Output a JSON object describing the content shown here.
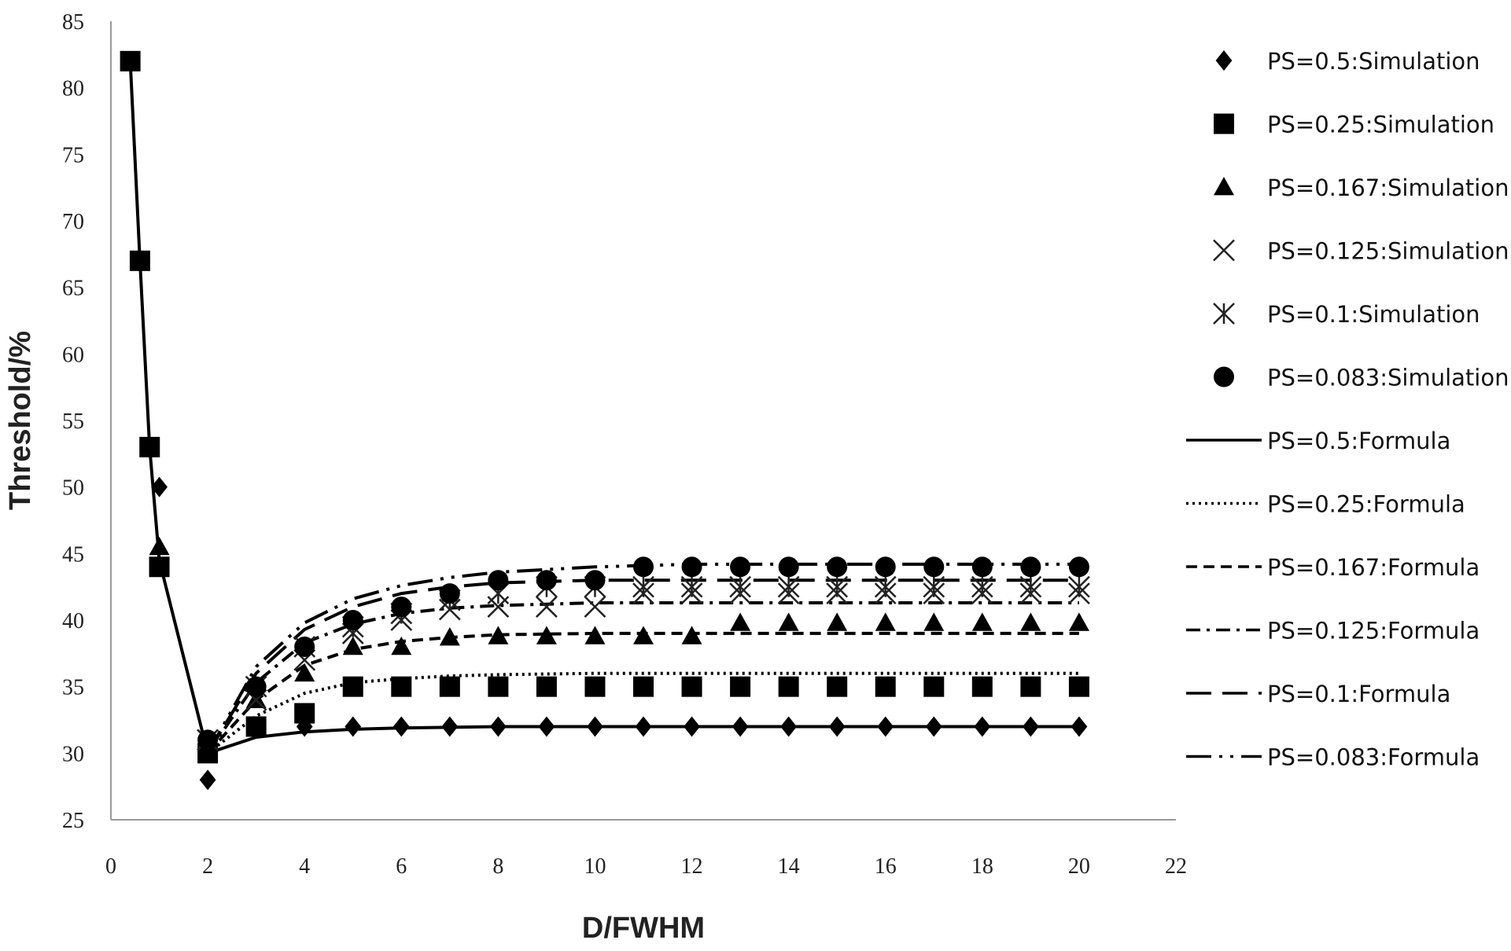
{
  "chart_data": {
    "type": "line",
    "title": "",
    "xlabel": "D/FWHM",
    "ylabel": "Threshold/%",
    "xlim": [
      0,
      22
    ],
    "ylim": [
      25,
      85
    ],
    "xticks": [
      "0",
      "2",
      "4",
      "6",
      "8",
      "10",
      "12",
      "14",
      "16",
      "18",
      "20",
      "22"
    ],
    "yticks": [
      "25",
      "30",
      "35",
      "40",
      "45",
      "50",
      "55",
      "60",
      "65",
      "70",
      "75",
      "80",
      "85"
    ],
    "grid": false,
    "legend_position": "right",
    "simulation_series": [
      {
        "name": "PS=0.5:Simulation",
        "marker": "diamond",
        "x": [
          0.4,
          0.6,
          0.8,
          1,
          2,
          3,
          4,
          5,
          6,
          7,
          8,
          9,
          10,
          11,
          12,
          13,
          14,
          15,
          16,
          17,
          18,
          19,
          20
        ],
        "y": [
          82,
          67,
          53,
          50,
          28,
          32,
          32,
          32,
          32,
          32,
          32,
          32,
          32,
          32,
          32,
          32,
          32,
          32,
          32,
          32,
          32,
          32,
          32
        ]
      },
      {
        "name": "PS=0.25:Simulation",
        "marker": "square",
        "x": [
          0.4,
          0.6,
          0.8,
          1,
          2,
          3,
          4,
          5,
          6,
          7,
          8,
          9,
          10,
          11,
          12,
          13,
          14,
          15,
          16,
          17,
          18,
          19,
          20
        ],
        "y": [
          82,
          67,
          53,
          44,
          30,
          32,
          33,
          35,
          35,
          35,
          35,
          35,
          35,
          35,
          35,
          35,
          35,
          35,
          35,
          35,
          35,
          35,
          35
        ]
      },
      {
        "name": "PS=0.167:Simulation",
        "marker": "triangle",
        "x": [
          1,
          2,
          3,
          4,
          5,
          6,
          7,
          8,
          9,
          10,
          11,
          12,
          13,
          14,
          15,
          16,
          17,
          18,
          19,
          20
        ],
        "y": [
          45.5,
          31,
          34,
          36,
          38,
          38,
          38.7,
          38.8,
          38.8,
          38.8,
          38.8,
          38.8,
          39.8,
          39.8,
          39.8,
          39.8,
          39.8,
          39.8,
          39.8,
          39.8
        ]
      },
      {
        "name": "PS=0.125:Simulation",
        "marker": "x",
        "x": [
          2,
          3,
          4,
          5,
          6,
          7,
          8,
          9,
          10,
          11,
          12,
          13,
          14,
          15,
          16,
          17,
          18,
          19,
          20
        ],
        "y": [
          31,
          34,
          37,
          39,
          40,
          40.8,
          41,
          41,
          41,
          42,
          42,
          42,
          42,
          42,
          42,
          42,
          42,
          42,
          42
        ]
      },
      {
        "name": "PS=0.1:Simulation",
        "marker": "asterisk",
        "x": [
          2,
          3,
          4,
          5,
          6,
          7,
          8,
          9,
          10,
          11,
          12,
          13,
          14,
          15,
          16,
          17,
          18,
          19,
          20
        ],
        "y": [
          31,
          35,
          38,
          39.5,
          40.5,
          41.5,
          42,
          42.5,
          42.5,
          42.5,
          42.5,
          42.5,
          42.5,
          42.5,
          42.5,
          42.5,
          42.5,
          42.5,
          42.5
        ]
      },
      {
        "name": "PS=0.083:Simulation",
        "marker": "circle",
        "x": [
          2,
          3,
          4,
          5,
          6,
          7,
          8,
          9,
          10,
          11,
          12,
          13,
          14,
          15,
          16,
          17,
          18,
          19,
          20
        ],
        "y": [
          31,
          35,
          38,
          40,
          41,
          42,
          43,
          43,
          43,
          44,
          44,
          44,
          44,
          44,
          44,
          44,
          44,
          44,
          44
        ]
      }
    ],
    "formula_series": [
      {
        "name": "PS=0.5:Formula",
        "dash": "solid",
        "x": [
          0.4,
          0.6,
          0.8,
          1,
          2,
          3,
          4,
          5,
          6,
          8,
          10,
          12,
          14,
          16,
          18,
          20
        ],
        "y": [
          82,
          67,
          53,
          44.5,
          30,
          31.2,
          31.6,
          31.8,
          31.9,
          32,
          32,
          32,
          32,
          32,
          32,
          32
        ]
      },
      {
        "name": "PS=0.25:Formula",
        "dash": "dotted",
        "x": [
          2,
          3,
          4,
          5,
          6,
          7,
          8,
          10,
          12,
          14,
          16,
          18,
          20
        ],
        "y": [
          30,
          32.8,
          34.5,
          35.3,
          35.6,
          35.8,
          35.9,
          36,
          36,
          36,
          36,
          36,
          36
        ]
      },
      {
        "name": "PS=0.167:Formula",
        "dash": "dashed",
        "x": [
          2,
          3,
          4,
          5,
          6,
          7,
          8,
          10,
          12,
          14,
          16,
          18,
          20
        ],
        "y": [
          30,
          34,
          36.6,
          37.8,
          38.4,
          38.7,
          38.9,
          39,
          39,
          39,
          39,
          39,
          39
        ]
      },
      {
        "name": "PS=0.125:Formula",
        "dash": "dashdot",
        "x": [
          2,
          3,
          4,
          5,
          6,
          7,
          8,
          10,
          12,
          14,
          16,
          18,
          20
        ],
        "y": [
          30,
          35.3,
          38.3,
          39.7,
          40.5,
          40.9,
          41.1,
          41.3,
          41.3,
          41.3,
          41.3,
          41.3,
          41.3
        ]
      },
      {
        "name": "PS=0.1:Formula",
        "dash": "longdash",
        "x": [
          2,
          3,
          4,
          5,
          6,
          7,
          8,
          10,
          12,
          14,
          16,
          18,
          20
        ],
        "y": [
          30,
          36,
          39.3,
          41,
          42,
          42.5,
          42.8,
          43,
          43,
          43,
          43,
          43,
          43
        ]
      },
      {
        "name": "PS=0.083:Formula",
        "dash": "longdashdotdot",
        "x": [
          2,
          3,
          4,
          5,
          6,
          7,
          8,
          10,
          12,
          14,
          16,
          18,
          20
        ],
        "y": [
          30,
          36.5,
          39.8,
          41.6,
          42.6,
          43.2,
          43.6,
          44,
          44.2,
          44.2,
          44.2,
          44.2,
          44.2
        ]
      }
    ]
  }
}
